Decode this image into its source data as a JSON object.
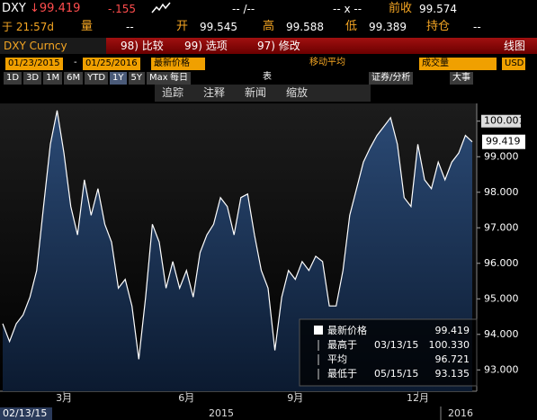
{
  "quote": {
    "ticker": "DXY",
    "last": "↓99.419",
    "change": "-.155",
    "bid": "-- /--",
    "size": "-- x --",
    "prev_label": "前收",
    "prev": "99.574",
    "time": "于 21:57d",
    "vol_label": "量",
    "vol": "--",
    "open_label": "开",
    "open": "99.545",
    "high_label": "高",
    "high": "99.588",
    "low_label": "低",
    "low": "99.389",
    "oi_label": "持仓",
    "oi": "--"
  },
  "toolbar": {
    "security": "DXY Curncy",
    "compare": "98) 比较",
    "options": "99) 选项",
    "edit": "97) 修改",
    "chart_type": "线图",
    "start": "01/23/2015",
    "sep": "-",
    "end": "01/25/2016",
    "field": "最新价格",
    "ma": "移动平均",
    "volume": "成交量",
    "currency": "USD",
    "periods": [
      "1D",
      "3D",
      "1M",
      "6M",
      "YTD",
      "1Y",
      "5Y",
      "Max"
    ],
    "freq": "每日",
    "table": "表",
    "analysis": "证券/分析",
    "events": "大事",
    "tools": [
      "追踪",
      "注释",
      "新闻",
      "缩放"
    ]
  },
  "chart_data": {
    "type": "line",
    "categories": [
      null,
      null,
      null,
      null,
      null,
      null,
      null,
      null,
      null,
      "3月",
      null,
      null,
      null,
      null,
      null,
      null,
      null,
      null,
      null,
      null,
      null,
      null,
      null,
      null,
      null,
      null,
      null,
      "6月",
      null,
      null,
      null,
      null,
      null,
      null,
      null,
      null,
      null,
      null,
      null,
      null,
      null,
      null,
      null,
      "9月",
      null,
      null,
      null,
      null,
      null,
      null,
      null,
      null,
      null,
      null,
      null,
      null,
      null,
      null,
      null,
      null,
      null,
      "12月",
      null,
      null,
      null,
      null,
      null,
      null,
      null,
      null
    ],
    "series": [
      {
        "name": "最新价格",
        "color": "#ffffff",
        "values": [
          94.3,
          93.8,
          94.3,
          94.55,
          95.05,
          95.8,
          97.6,
          99.35,
          100.3,
          99.1,
          97.6,
          96.8,
          98.35,
          97.35,
          98.1,
          97.1,
          96.6,
          95.3,
          95.55,
          94.8,
          93.3,
          95.05,
          97.1,
          96.6,
          95.3,
          96.05,
          95.3,
          95.8,
          95.05,
          96.3,
          96.8,
          97.1,
          97.85,
          97.6,
          96.8,
          97.85,
          97.95,
          96.8,
          95.8,
          95.3,
          93.55,
          95.05,
          95.8,
          95.55,
          96.05,
          95.8,
          96.2,
          96.05,
          94.8,
          94.8,
          95.8,
          97.35,
          98.1,
          98.85,
          99.25,
          99.6,
          99.85,
          100.1,
          99.35,
          97.85,
          97.6,
          99.35,
          98.35,
          98.1,
          98.85,
          98.35,
          98.85,
          99.1,
          99.6,
          99.419
        ]
      }
    ],
    "ylim": [
      92.4,
      100.5
    ],
    "yticks": [
      {
        "value": 93,
        "label": "93.000"
      },
      {
        "value": 94,
        "label": "94.000"
      },
      {
        "value": 95,
        "label": "95.000"
      },
      {
        "value": 96,
        "label": "96.000"
      },
      {
        "value": 97,
        "label": "97.000"
      },
      {
        "value": 98,
        "label": "98.000"
      },
      {
        "value": 99,
        "label": "99.000"
      },
      100.001
    ],
    "start_label": "02/13/15",
    "year_labels": [
      "2015",
      "2016"
    ],
    "legend_rows": [
      {
        "label": "最高于",
        "date": "03/13/15",
        "value": "100.330"
      },
      {
        "label": "平均",
        "value": "96.721"
      },
      {
        "label": "最低于",
        "date": "05/15/15",
        "value": "93.135"
      }
    ]
  }
}
